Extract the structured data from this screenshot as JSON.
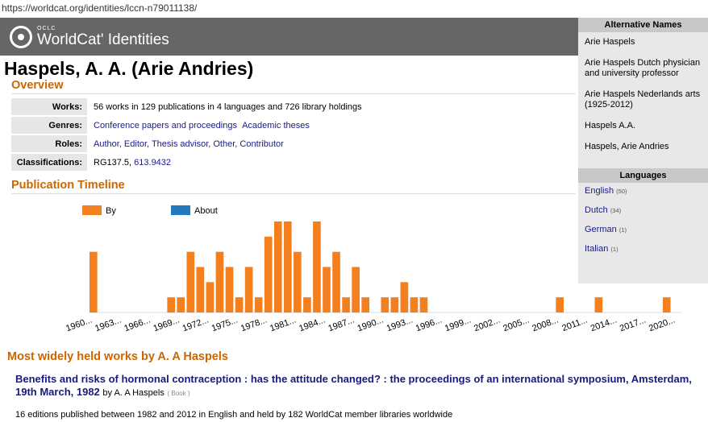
{
  "browser": {
    "url": "https://worldcat.org/identities/lccn-n79011138/"
  },
  "header": {
    "logo_small": "OCLC",
    "logo_main": "WorldCat' Identities"
  },
  "page": {
    "title": "Haspels, A. A. (Arie Andries)"
  },
  "overview": {
    "heading": "Overview",
    "works_label": "Works:",
    "works_value": "56 works in 129 publications in 4 languages and 726 library holdings",
    "genres_label": "Genres:",
    "genre_1": "Conference papers and proceedings",
    "genre_2": "Academic theses",
    "roles_label": "Roles:",
    "roles_value": "Author, Editor, Thesis advisor, Other, Contributor",
    "class_label": "Classifications:",
    "class_1": "RG137.5,",
    "class_2": "613.9432"
  },
  "timeline": {
    "heading": "Publication Timeline",
    "legend_by": "By",
    "legend_about": "About"
  },
  "chart_data": {
    "type": "bar",
    "series": [
      {
        "name": "By",
        "color": "#f47f1f",
        "x": [
          1960,
          1968,
          1969,
          1970,
          1971,
          1972,
          1973,
          1974,
          1975,
          1976,
          1977,
          1978,
          1979,
          1980,
          1981,
          1982,
          1983,
          1984,
          1985,
          1986,
          1987,
          1988,
          1990,
          1991,
          1992,
          1993,
          1994,
          2008,
          2012,
          2019
        ],
        "values": [
          6,
          1.5,
          1.5,
          6,
          4.5,
          3,
          6,
          4.5,
          1.5,
          4.5,
          1.5,
          7.5,
          9,
          9,
          6,
          1.5,
          9,
          4.5,
          6,
          1.5,
          4.5,
          1.5,
          1.5,
          1.5,
          3,
          1.5,
          1.5,
          1.5,
          1.5,
          1.5
        ]
      },
      {
        "name": "About",
        "color": "#2378bf",
        "x": [],
        "values": []
      }
    ],
    "tick_labels": [
      "1960...",
      "1963...",
      "1966...",
      "1969...",
      "1972...",
      "1975...",
      "1978...",
      "1981...",
      "1984...",
      "1987...",
      "1990...",
      "1993...",
      "1996...",
      "1999...",
      "2002...",
      "2005...",
      "2008...",
      "2011...",
      "2014...",
      "2017...",
      "2020..."
    ],
    "x_range": [
      1960,
      2021
    ],
    "legend_position": "top-left"
  },
  "sidebar": {
    "alt_heading": "Alternative Names",
    "alt_names": [
      "Arie Haspels",
      "Arie Haspels Dutch physician and university professor",
      "Arie Haspels Nederlands arts (1925-2012)",
      "Haspels A.A.",
      "Haspels, Arie Andries"
    ],
    "lang_heading": "Languages",
    "languages": [
      {
        "name": "English",
        "count": "(50)"
      },
      {
        "name": "Dutch",
        "count": "(34)"
      },
      {
        "name": "German",
        "count": "(1)"
      },
      {
        "name": "Italian",
        "count": "(1)"
      }
    ]
  },
  "works": {
    "heading": "Most widely held works by A. A Haspels",
    "item_title_1": "Benefits and risks of hormonal contraception : has the attitude changed? : the proceedings of an international symposium, Amsterdam,",
    "item_title_2": "19th March, 1982",
    "item_by": "by A. A Haspels",
    "item_type": "( Book )",
    "item_desc": "16 editions published between 1982 and 2012 in English and held by 182 WorldCat member libraries worldwide"
  }
}
